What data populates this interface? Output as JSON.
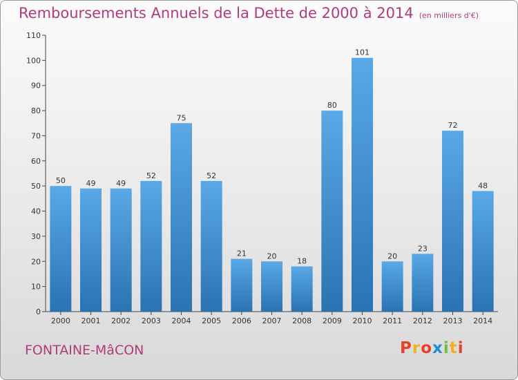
{
  "title": "Remboursements Annuels de la Dette de 2000 à 2014",
  "subtitle": "(en milliers d'€)",
  "city": "FONTAINE-MâCON",
  "logo": "Proxiti",
  "colors": {
    "title": "#b23a7c",
    "bar_top": "#5aa8e6",
    "bar_bottom": "#2a73b3",
    "logo_letters": [
      "#e8402a",
      "#f2b01e",
      "#e8402a",
      "#1e8fd6",
      "#6cbf3f",
      "#f2b01e",
      "#e8402a"
    ]
  },
  "chart_data": {
    "type": "bar",
    "title": "Remboursements Annuels de la Dette de 2000 à 2014",
    "subtitle": "(en milliers d'€)",
    "categories": [
      "2000",
      "2001",
      "2002",
      "2003",
      "2004",
      "2005",
      "2006",
      "2007",
      "2008",
      "2009",
      "2010",
      "2011",
      "2012",
      "2013",
      "2014"
    ],
    "values": [
      50,
      49,
      49,
      52,
      75,
      52,
      21,
      20,
      18,
      80,
      101,
      20,
      23,
      72,
      48
    ],
    "yticks": [
      0,
      10,
      20,
      30,
      40,
      50,
      60,
      70,
      80,
      90,
      100,
      110
    ],
    "ylim": [
      0,
      110
    ],
    "grid": false,
    "legend": "none"
  }
}
